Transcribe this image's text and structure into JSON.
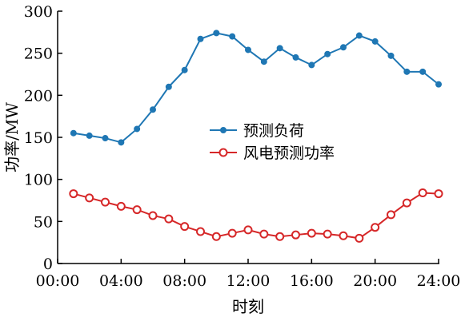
{
  "chart_data": {
    "type": "line",
    "xlabel": "时刻",
    "ylabel": "功率/MW",
    "xlim": [
      0,
      24
    ],
    "ylim": [
      0,
      300
    ],
    "x_ticks": [
      0,
      4,
      8,
      12,
      16,
      20,
      24
    ],
    "x_tick_labels": [
      "00:00",
      "04:00",
      "08:00",
      "12:00",
      "16:00",
      "20:00",
      "24:00"
    ],
    "y_ticks": [
      0,
      50,
      100,
      150,
      200,
      250,
      300
    ],
    "y_tick_labels": [
      "0",
      "50",
      "100",
      "150",
      "200",
      "250",
      "300"
    ],
    "grid": false,
    "legend_position": "center",
    "x": [
      1,
      2,
      3,
      4,
      5,
      6,
      7,
      8,
      9,
      10,
      11,
      12,
      13,
      14,
      15,
      16,
      17,
      18,
      19,
      20,
      21,
      22,
      23,
      24
    ],
    "series": [
      {
        "name": "预测负荷",
        "color": "#1f77b4",
        "marker": "filled-circle",
        "values": [
          155,
          152,
          149,
          144,
          160,
          183,
          210,
          230,
          267,
          274,
          270,
          254,
          240,
          256,
          245,
          236,
          249,
          257,
          271,
          264,
          247,
          228,
          228,
          213
        ]
      },
      {
        "name": "风电预测功率",
        "color": "#d62728",
        "marker": "hollow-circle",
        "values": [
          83,
          78,
          73,
          68,
          64,
          57,
          53,
          44,
          38,
          32,
          36,
          40,
          35,
          32,
          34,
          36,
          35,
          33,
          30,
          43,
          58,
          72,
          84,
          83
        ]
      }
    ]
  }
}
